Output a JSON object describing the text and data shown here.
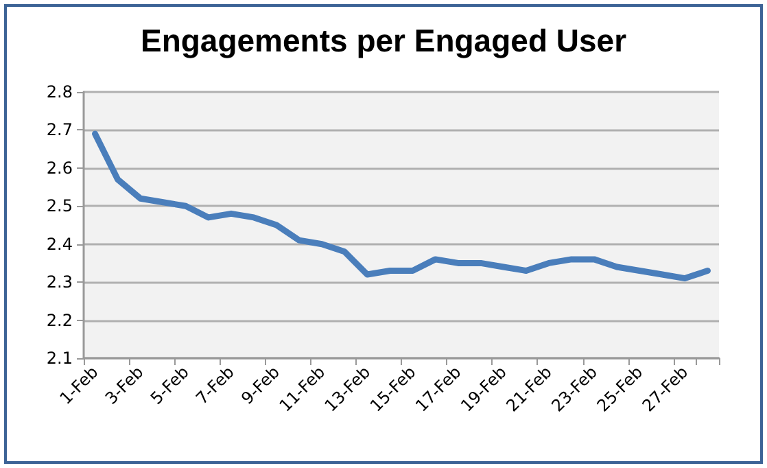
{
  "chart_data": {
    "type": "line",
    "title": "Engagements per Engaged User",
    "categories": [
      "1-Feb",
      null,
      "3-Feb",
      null,
      "5-Feb",
      null,
      "7-Feb",
      null,
      "9-Feb",
      null,
      "11-Feb",
      null,
      "13-Feb",
      null,
      "15-Feb",
      null,
      "17-Feb",
      null,
      "19-Feb",
      null,
      "21-Feb",
      null,
      "23-Feb",
      null,
      "25-Feb",
      null,
      "27-Feb",
      null
    ],
    "series": [
      {
        "color": "#4a7ebb",
        "values": [
          2.69,
          2.57,
          2.52,
          2.51,
          2.5,
          2.47,
          2.48,
          2.47,
          2.45,
          2.41,
          2.4,
          2.38,
          2.32,
          2.33,
          2.33,
          2.36,
          2.35,
          2.35,
          2.34,
          2.33,
          2.35,
          2.36,
          2.36,
          2.34,
          2.33,
          2.32,
          2.31,
          2.33
        ]
      }
    ],
    "ylim": [
      2.1,
      2.8
    ],
    "yticks": [
      2.1,
      2.2,
      2.3,
      2.4,
      2.5,
      2.6,
      2.7,
      2.8
    ],
    "grid": "y",
    "marker": "none",
    "line_style": "solid"
  }
}
